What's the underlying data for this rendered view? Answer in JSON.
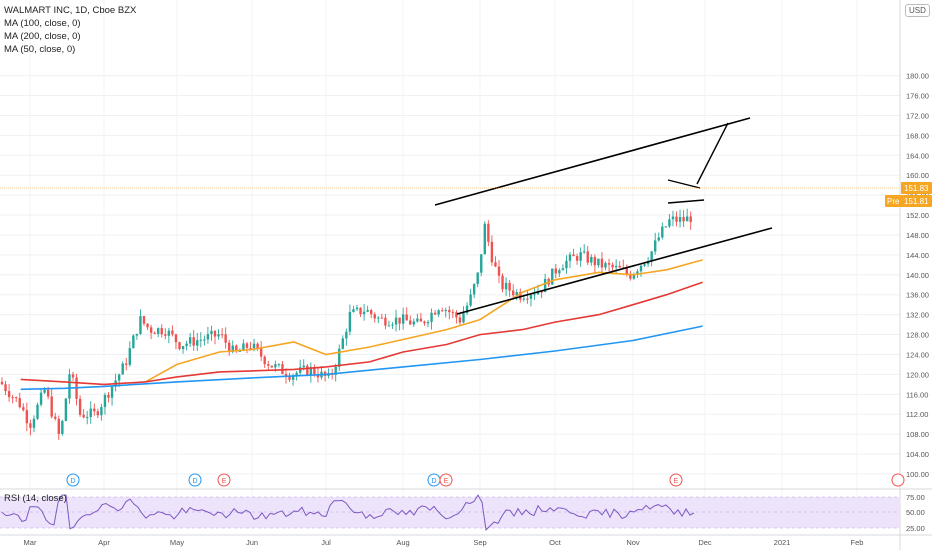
{
  "header": {
    "symbol": "WALMART INC, 1D, Cboe BZX",
    "indicators": [
      "MA (100, close, 0)",
      "MA (200, close, 0)",
      "MA (50, close, 0)"
    ],
    "currency": "USD"
  },
  "rsi": {
    "label": "RSI (14, close)",
    "ticks": [
      "75.00",
      "50.00",
      "25.00"
    ]
  },
  "price_badges": {
    "last": "151.83",
    "pre_label": "Pre",
    "pre": "151.81"
  },
  "colors": {
    "up": "#26a69a",
    "down": "#ef5350",
    "ma50": "#f5a623",
    "ma100": "#e53935",
    "ma200": "#2196f3",
    "rsi": "#7e57c2",
    "trend": "#000000"
  },
  "chart_data": {
    "type": "candlestick",
    "title": "WALMART INC, 1D, Cboe BZX",
    "ylim": [
      96,
      186
    ],
    "y_ticks": [
      100,
      104,
      108,
      112,
      116,
      120,
      124,
      128,
      132,
      136,
      140,
      144,
      148,
      152,
      156,
      160,
      164,
      168,
      172,
      176,
      180
    ],
    "x_ticks": [
      "Mar",
      "Apr",
      "May",
      "Jun",
      "Jul",
      "Aug",
      "Sep",
      "Oct",
      "Nov",
      "Dec",
      "2021",
      "Feb"
    ],
    "last_price": 151.83,
    "series": [
      {
        "name": "MA (50, close, 0)",
        "x": [
          "Apr 18",
          "May 1",
          "May 18",
          "Jun 1",
          "Jun 18",
          "Jul 1",
          "Jul 18",
          "Aug 1",
          "Aug 18",
          "Sep 1",
          "Sep 18",
          "Oct 1",
          "Oct 18",
          "Nov 1",
          "Nov 15",
          "Nov 30"
        ],
        "values": [
          118.5,
          122,
          124.5,
          125,
          126.5,
          124,
          125.5,
          127,
          129,
          131,
          136.5,
          139,
          140.5,
          140,
          141,
          143
        ]
      },
      {
        "name": "MA (100, close, 0)",
        "x": [
          "Feb 24",
          "Mar 15",
          "Apr 1",
          "Apr 18",
          "May 1",
          "May 18",
          "Jun 1",
          "Jun 18",
          "Jul 1",
          "Jul 18",
          "Aug 1",
          "Aug 18",
          "Sep 1",
          "Sep 18",
          "Oct 1",
          "Oct 18",
          "Nov 1",
          "Nov 15",
          "Nov 30"
        ],
        "values": [
          119,
          118.5,
          118,
          118.5,
          119.5,
          120.5,
          120.7,
          121,
          121.5,
          122.5,
          124.5,
          126,
          128,
          129,
          130.5,
          132,
          134,
          136,
          138.5
        ]
      },
      {
        "name": "MA (200, close, 0)",
        "x": [
          "Feb 24",
          "Mar 15",
          "Apr 1",
          "May 1",
          "Jun 1",
          "Jul 1",
          "Aug 1",
          "Sep 1",
          "Oct 1",
          "Nov 1",
          "Nov 30"
        ],
        "values": [
          117,
          117.2,
          117.6,
          118.5,
          119.3,
          120,
          121.5,
          123,
          124.7,
          126.8,
          129.7
        ]
      }
    ],
    "annotations": [
      "D",
      "D",
      "E",
      "D",
      "E",
      "E"
    ]
  }
}
